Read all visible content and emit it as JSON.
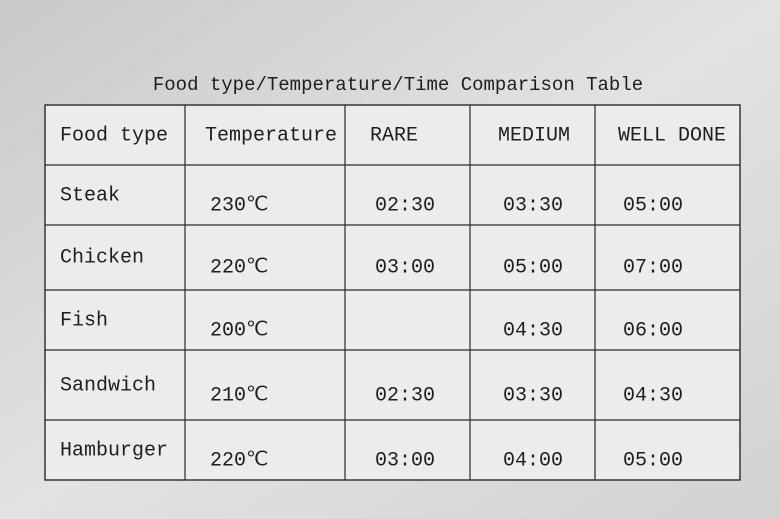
{
  "title": "Food type/Temperature/Time Comparison Table",
  "table": {
    "header": [
      "Food type",
      "Temperature",
      "RARE",
      "MEDIUM",
      "WELL DONE"
    ],
    "rows": [
      [
        "Steak",
        "230℃",
        "02:30",
        "03:30",
        "05:00"
      ],
      [
        "Chicken",
        "220℃",
        "03:00",
        "05:00",
        "07:00"
      ],
      [
        "Fish",
        "200℃",
        null,
        "04:30",
        "06:00"
      ],
      [
        "Sandwich",
        "210℃",
        "02:30",
        "03:30",
        "04:30"
      ],
      [
        "Hamburger",
        "220℃",
        "03:00",
        "04:00",
        "05:00"
      ]
    ]
  }
}
